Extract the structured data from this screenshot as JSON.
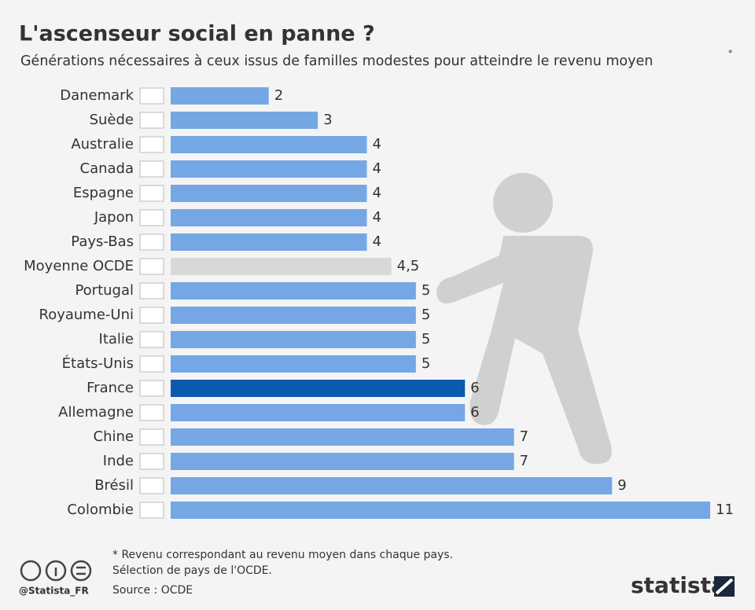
{
  "chart_data": {
    "type": "hbar",
    "title": "L'ascenseur social en panne ?",
    "subtitle": "Générations nécessaires à ceux issus de familles modestes pour atteindre le revenu moyen",
    "subtitle_mark": "*",
    "categories": [
      "Danemark",
      "Suède",
      "Australie",
      "Canada",
      "Espagne",
      "Japon",
      "Pays-Bas",
      "Moyenne OCDE",
      "Portugal",
      "Royaume-Uni",
      "Italie",
      "États-Unis",
      "France",
      "Allemagne",
      "Chine",
      "Inde",
      "Brésil",
      "Colombie"
    ],
    "values": [
      2,
      3,
      4,
      4,
      4,
      4,
      4,
      4.5,
      5,
      5,
      5,
      5,
      6,
      6,
      7,
      7,
      9,
      11
    ],
    "value_labels": [
      "2",
      "3",
      "4",
      "4",
      "4",
      "4",
      "4",
      "4,5",
      "5",
      "5",
      "5",
      "5",
      "6",
      "6",
      "7",
      "7",
      "9",
      "11"
    ],
    "colors": [
      "#75a7e4",
      "#75a7e4",
      "#75a7e4",
      "#75a7e4",
      "#75a7e4",
      "#75a7e4",
      "#75a7e4",
      "#d8d8d8",
      "#75a7e4",
      "#75a7e4",
      "#75a7e4",
      "#75a7e4",
      "#0b5aae",
      "#75a7e4",
      "#75a7e4",
      "#75a7e4",
      "#75a7e4",
      "#75a7e4"
    ],
    "notes": [
      "* Revenu correspondant au revenu moyen dans chaque pays.",
      "Sélection de pays de l'OCDE."
    ],
    "source": "Source : OCDE",
    "handle": "@Statista_FR",
    "brand": "statista"
  }
}
